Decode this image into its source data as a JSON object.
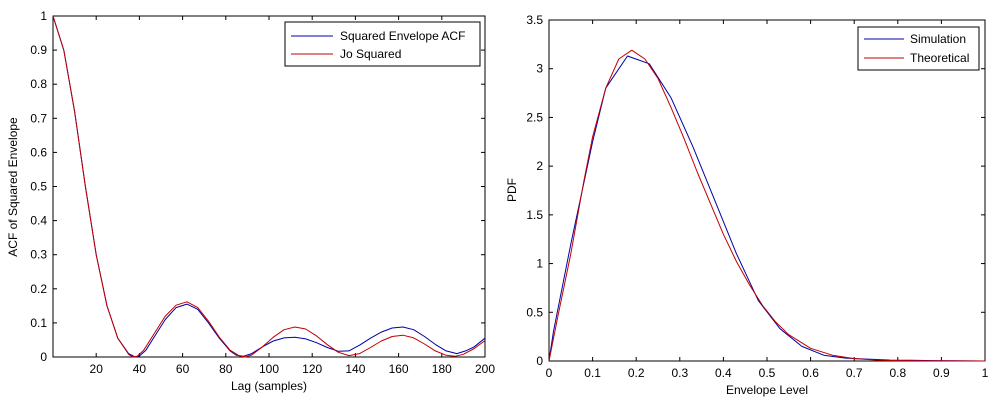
{
  "chart_data": [
    {
      "type": "line",
      "xlabel": "Lag (samples)",
      "ylabel": "ACF of Squared Envelope",
      "xlim": [
        0,
        200
      ],
      "ylim": [
        0,
        1
      ],
      "xticks": [
        20,
        40,
        60,
        80,
        100,
        120,
        140,
        160,
        180,
        200
      ],
      "yticks": [
        0,
        0.1,
        0.2,
        0.3,
        0.4,
        0.5,
        0.6,
        0.7,
        0.8,
        0.9,
        1
      ],
      "grid": false,
      "legend_position": "top-right",
      "series": [
        {
          "name": "Squared Envelope ACF",
          "color": "#0000a8",
          "x": [
            0,
            5,
            10,
            15,
            20,
            25,
            30,
            35,
            38,
            40,
            43,
            47,
            52,
            57,
            62,
            67,
            72,
            77,
            82,
            85,
            88,
            92,
            97,
            102,
            107,
            112,
            117,
            122,
            127,
            132,
            137,
            142,
            147,
            152,
            157,
            162,
            167,
            172,
            177,
            182,
            187,
            191,
            195,
            200
          ],
          "y": [
            1.0,
            0.9,
            0.72,
            0.5,
            0.3,
            0.15,
            0.055,
            0.01,
            0.0,
            0.003,
            0.02,
            0.06,
            0.11,
            0.145,
            0.155,
            0.14,
            0.1,
            0.055,
            0.018,
            0.005,
            0.002,
            0.01,
            0.03,
            0.047,
            0.056,
            0.058,
            0.053,
            0.042,
            0.028,
            0.017,
            0.018,
            0.035,
            0.055,
            0.073,
            0.085,
            0.088,
            0.08,
            0.06,
            0.037,
            0.018,
            0.01,
            0.018,
            0.03,
            0.055
          ]
        },
        {
          "name": "Jo Squared",
          "color": "#c00000",
          "x": [
            0,
            5,
            10,
            15,
            20,
            25,
            30,
            35,
            37,
            39,
            42,
            47,
            52,
            57,
            62,
            67,
            72,
            77,
            82,
            86,
            89,
            92,
            97,
            102,
            107,
            112,
            117,
            122,
            127,
            132,
            137,
            142,
            147,
            152,
            157,
            162,
            167,
            172,
            177,
            182,
            186,
            190,
            195,
            200
          ],
          "y": [
            1.0,
            0.9,
            0.72,
            0.5,
            0.3,
            0.15,
            0.055,
            0.008,
            0.0,
            0.002,
            0.02,
            0.07,
            0.12,
            0.152,
            0.162,
            0.145,
            0.105,
            0.058,
            0.02,
            0.004,
            0.0,
            0.006,
            0.03,
            0.058,
            0.08,
            0.088,
            0.082,
            0.062,
            0.036,
            0.014,
            0.004,
            0.01,
            0.028,
            0.047,
            0.06,
            0.064,
            0.056,
            0.038,
            0.018,
            0.005,
            0.002,
            0.008,
            0.025,
            0.048
          ]
        }
      ]
    },
    {
      "type": "line",
      "xlabel": "Envelope Level",
      "ylabel": "PDF",
      "xlim": [
        0,
        1
      ],
      "ylim": [
        0,
        3.5
      ],
      "xticks": [
        0,
        0.1,
        0.2,
        0.3,
        0.4,
        0.5,
        0.6,
        0.7,
        0.8,
        0.9,
        1
      ],
      "yticks": [
        0,
        0.5,
        1,
        1.5,
        2,
        2.5,
        3,
        3.5
      ],
      "grid": false,
      "legend_position": "top-right",
      "series": [
        {
          "name": "Simulation",
          "color": "#0000a8",
          "x": [
            0,
            0.01,
            0.05,
            0.1,
            0.13,
            0.18,
            0.23,
            0.28,
            0.33,
            0.38,
            0.43,
            0.48,
            0.53,
            0.58,
            0.63,
            0.68,
            0.73,
            0.78,
            0.83,
            0.88,
            0.93,
            1.0
          ],
          "y": [
            0,
            0.3,
            1.2,
            2.25,
            2.8,
            3.13,
            3.05,
            2.7,
            2.2,
            1.65,
            1.1,
            0.62,
            0.33,
            0.15,
            0.06,
            0.03,
            0.02,
            0.01,
            0.008,
            0.004,
            0.002,
            0
          ]
        },
        {
          "name": "Theoretical",
          "color": "#c00000",
          "x": [
            0,
            0.02,
            0.05,
            0.08,
            0.1,
            0.13,
            0.16,
            0.19,
            0.22,
            0.25,
            0.28,
            0.31,
            0.34,
            0.37,
            0.4,
            0.43,
            0.46,
            0.49,
            0.52,
            0.55,
            0.6,
            0.65,
            0.7,
            0.75,
            0.8,
            0.85,
            0.9,
            1.0
          ],
          "y": [
            0,
            0.45,
            1.1,
            1.85,
            2.3,
            2.8,
            3.1,
            3.19,
            3.1,
            2.9,
            2.6,
            2.28,
            1.94,
            1.62,
            1.3,
            1.02,
            0.78,
            0.57,
            0.4,
            0.27,
            0.13,
            0.06,
            0.025,
            0.01,
            0.004,
            0.002,
            0.001,
            0
          ]
        }
      ]
    }
  ]
}
